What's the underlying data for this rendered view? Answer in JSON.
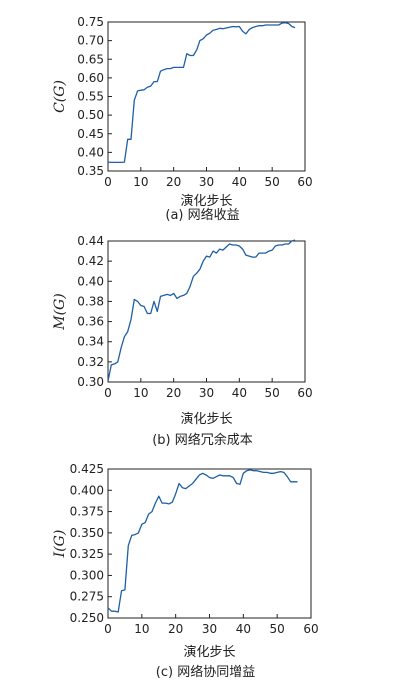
{
  "chart_data": [
    {
      "type": "line",
      "caption": "(a) 网络收益",
      "xlabel": "演化步长",
      "ylabel": "C(G)",
      "xlim": [
        0,
        60
      ],
      "ylim": [
        0.35,
        0.75
      ],
      "xticks": [
        "0",
        "10",
        "20",
        "30",
        "40",
        "50",
        "60"
      ],
      "yticks": [
        "0.35",
        "0.40",
        "0.45",
        "0.50",
        "0.55",
        "0.60",
        "0.65",
        "0.70",
        "0.75"
      ],
      "series": [
        {
          "color": "#1f5fa5",
          "x": [
            0,
            1,
            2,
            3,
            4,
            5,
            6,
            7,
            8,
            9,
            10,
            11,
            12,
            13,
            14,
            15,
            16,
            17,
            18,
            19,
            20,
            21,
            22,
            23,
            24,
            25,
            26,
            27,
            28,
            29,
            30,
            31,
            32,
            33,
            34,
            35,
            36,
            37,
            38,
            39,
            40,
            41,
            42,
            43,
            44,
            45,
            46,
            47,
            48,
            49,
            50,
            51,
            52,
            53,
            54,
            55,
            56,
            57
          ],
          "y": [
            0.374,
            0.373,
            0.373,
            0.373,
            0.373,
            0.374,
            0.435,
            0.435,
            0.54,
            0.565,
            0.567,
            0.568,
            0.575,
            0.578,
            0.59,
            0.59,
            0.618,
            0.622,
            0.625,
            0.625,
            0.628,
            0.628,
            0.628,
            0.628,
            0.665,
            0.66,
            0.66,
            0.675,
            0.7,
            0.705,
            0.715,
            0.72,
            0.728,
            0.73,
            0.733,
            0.732,
            0.734,
            0.736,
            0.738,
            0.737,
            0.738,
            0.725,
            0.718,
            0.73,
            0.735,
            0.738,
            0.74,
            0.74,
            0.742,
            0.742,
            0.742,
            0.742,
            0.742,
            0.747,
            0.748,
            0.746,
            0.738,
            0.735
          ]
        }
      ]
    },
    {
      "type": "line",
      "caption": "(b) 网络冗余成本",
      "xlabel": "演化步长",
      "ylabel": "M(G)",
      "xlim": [
        0,
        60
      ],
      "ylim": [
        0.3,
        0.44
      ],
      "xticks": [
        "0",
        "10",
        "20",
        "30",
        "40",
        "50",
        "60"
      ],
      "yticks": [
        "0.30",
        "0.32",
        "0.34",
        "0.36",
        "0.38",
        "0.40",
        "0.42",
        "0.44"
      ],
      "series": [
        {
          "color": "#1f5fa5",
          "x": [
            0,
            1,
            2,
            3,
            4,
            5,
            6,
            7,
            8,
            9,
            10,
            11,
            12,
            13,
            14,
            15,
            16,
            17,
            18,
            19,
            20,
            21,
            22,
            23,
            24,
            25,
            26,
            27,
            28,
            29,
            30,
            31,
            32,
            33,
            34,
            35,
            36,
            37,
            38,
            39,
            40,
            41,
            42,
            43,
            44,
            45,
            46,
            47,
            48,
            49,
            50,
            51,
            52,
            53,
            54,
            55,
            56,
            57
          ],
          "y": [
            0.301,
            0.317,
            0.318,
            0.32,
            0.334,
            0.345,
            0.35,
            0.362,
            0.382,
            0.38,
            0.376,
            0.375,
            0.368,
            0.368,
            0.38,
            0.37,
            0.385,
            0.386,
            0.387,
            0.386,
            0.388,
            0.383,
            0.385,
            0.386,
            0.388,
            0.395,
            0.405,
            0.408,
            0.412,
            0.42,
            0.425,
            0.424,
            0.43,
            0.428,
            0.432,
            0.431,
            0.434,
            0.437,
            0.436,
            0.436,
            0.435,
            0.432,
            0.426,
            0.425,
            0.424,
            0.424,
            0.428,
            0.428,
            0.428,
            0.43,
            0.431,
            0.435,
            0.436,
            0.436,
            0.437,
            0.437,
            0.44,
            0.441
          ]
        }
      ]
    },
    {
      "type": "line",
      "caption": "(c) 网络协同增益",
      "xlabel": "演化步长",
      "ylabel": "I(G)",
      "xlim": [
        0,
        60
      ],
      "ylim": [
        0.25,
        0.425
      ],
      "xticks": [
        "0",
        "10",
        "20",
        "30",
        "40",
        "50",
        "60"
      ],
      "yticks": [
        "0.250",
        "0.275",
        "0.300",
        "0.325",
        "0.350",
        "0.375",
        "0.400",
        "0.425"
      ],
      "series": [
        {
          "color": "#1f5fa5",
          "x": [
            0,
            1,
            2,
            3,
            4,
            5,
            6,
            7,
            8,
            9,
            10,
            11,
            12,
            13,
            14,
            15,
            16,
            17,
            18,
            19,
            20,
            21,
            22,
            23,
            24,
            25,
            26,
            27,
            28,
            29,
            30,
            31,
            32,
            33,
            34,
            35,
            36,
            37,
            38,
            39,
            40,
            41,
            42,
            43,
            44,
            45,
            46,
            47,
            48,
            49,
            50,
            51,
            52,
            53,
            54,
            55,
            56
          ],
          "y": [
            0.262,
            0.258,
            0.258,
            0.257,
            0.282,
            0.283,
            0.335,
            0.347,
            0.348,
            0.35,
            0.36,
            0.362,
            0.372,
            0.375,
            0.385,
            0.393,
            0.385,
            0.385,
            0.384,
            0.386,
            0.396,
            0.408,
            0.403,
            0.402,
            0.405,
            0.408,
            0.413,
            0.418,
            0.42,
            0.418,
            0.415,
            0.414,
            0.416,
            0.418,
            0.417,
            0.417,
            0.417,
            0.415,
            0.408,
            0.407,
            0.42,
            0.423,
            0.424,
            0.423,
            0.423,
            0.422,
            0.421,
            0.421,
            0.42,
            0.42,
            0.421,
            0.422,
            0.421,
            0.416,
            0.41,
            0.41,
            0.41
          ]
        }
      ]
    }
  ]
}
